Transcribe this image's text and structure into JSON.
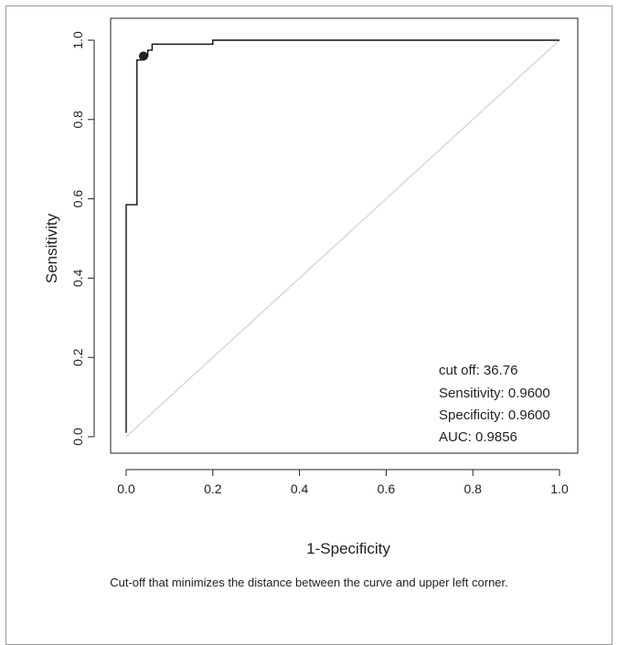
{
  "chart_data": {
    "type": "line",
    "xlabel": "1-Specificity",
    "ylabel": "Sensitivity",
    "xlim": [
      0,
      1
    ],
    "ylim": [
      0,
      1
    ],
    "xticks": [
      "0.0",
      "0.2",
      "0.4",
      "0.6",
      "0.8",
      "1.0"
    ],
    "yticks": [
      "0.0",
      "0.2",
      "0.4",
      "0.6",
      "0.8",
      "1.0"
    ],
    "grid": false,
    "series": [
      {
        "x": [
          0,
          0,
          0.025,
          0.025,
          0.025,
          0.04,
          0.04,
          0.05,
          0.05,
          0.06,
          0.06,
          0.2,
          0.2,
          1
        ],
        "y": [
          0.01,
          0.585,
          0.585,
          0.945,
          0.95,
          0.95,
          0.96,
          0.96,
          0.975,
          0.975,
          0.99,
          0.99,
          1,
          1
        ]
      }
    ],
    "reference_line": {
      "x": [
        0,
        1
      ],
      "y": [
        0,
        1
      ],
      "color": "#c8c8c8"
    },
    "optimal_point": {
      "x": 0.04,
      "y": 0.96
    },
    "annotations": [
      "cut off: 36.76",
      "Sensitivity: 0.9600",
      "Specificity: 0.9600",
      "AUC: 0.9856"
    ],
    "caption": "Cut-off that minimizes the distance between the curve and upper left corner."
  }
}
